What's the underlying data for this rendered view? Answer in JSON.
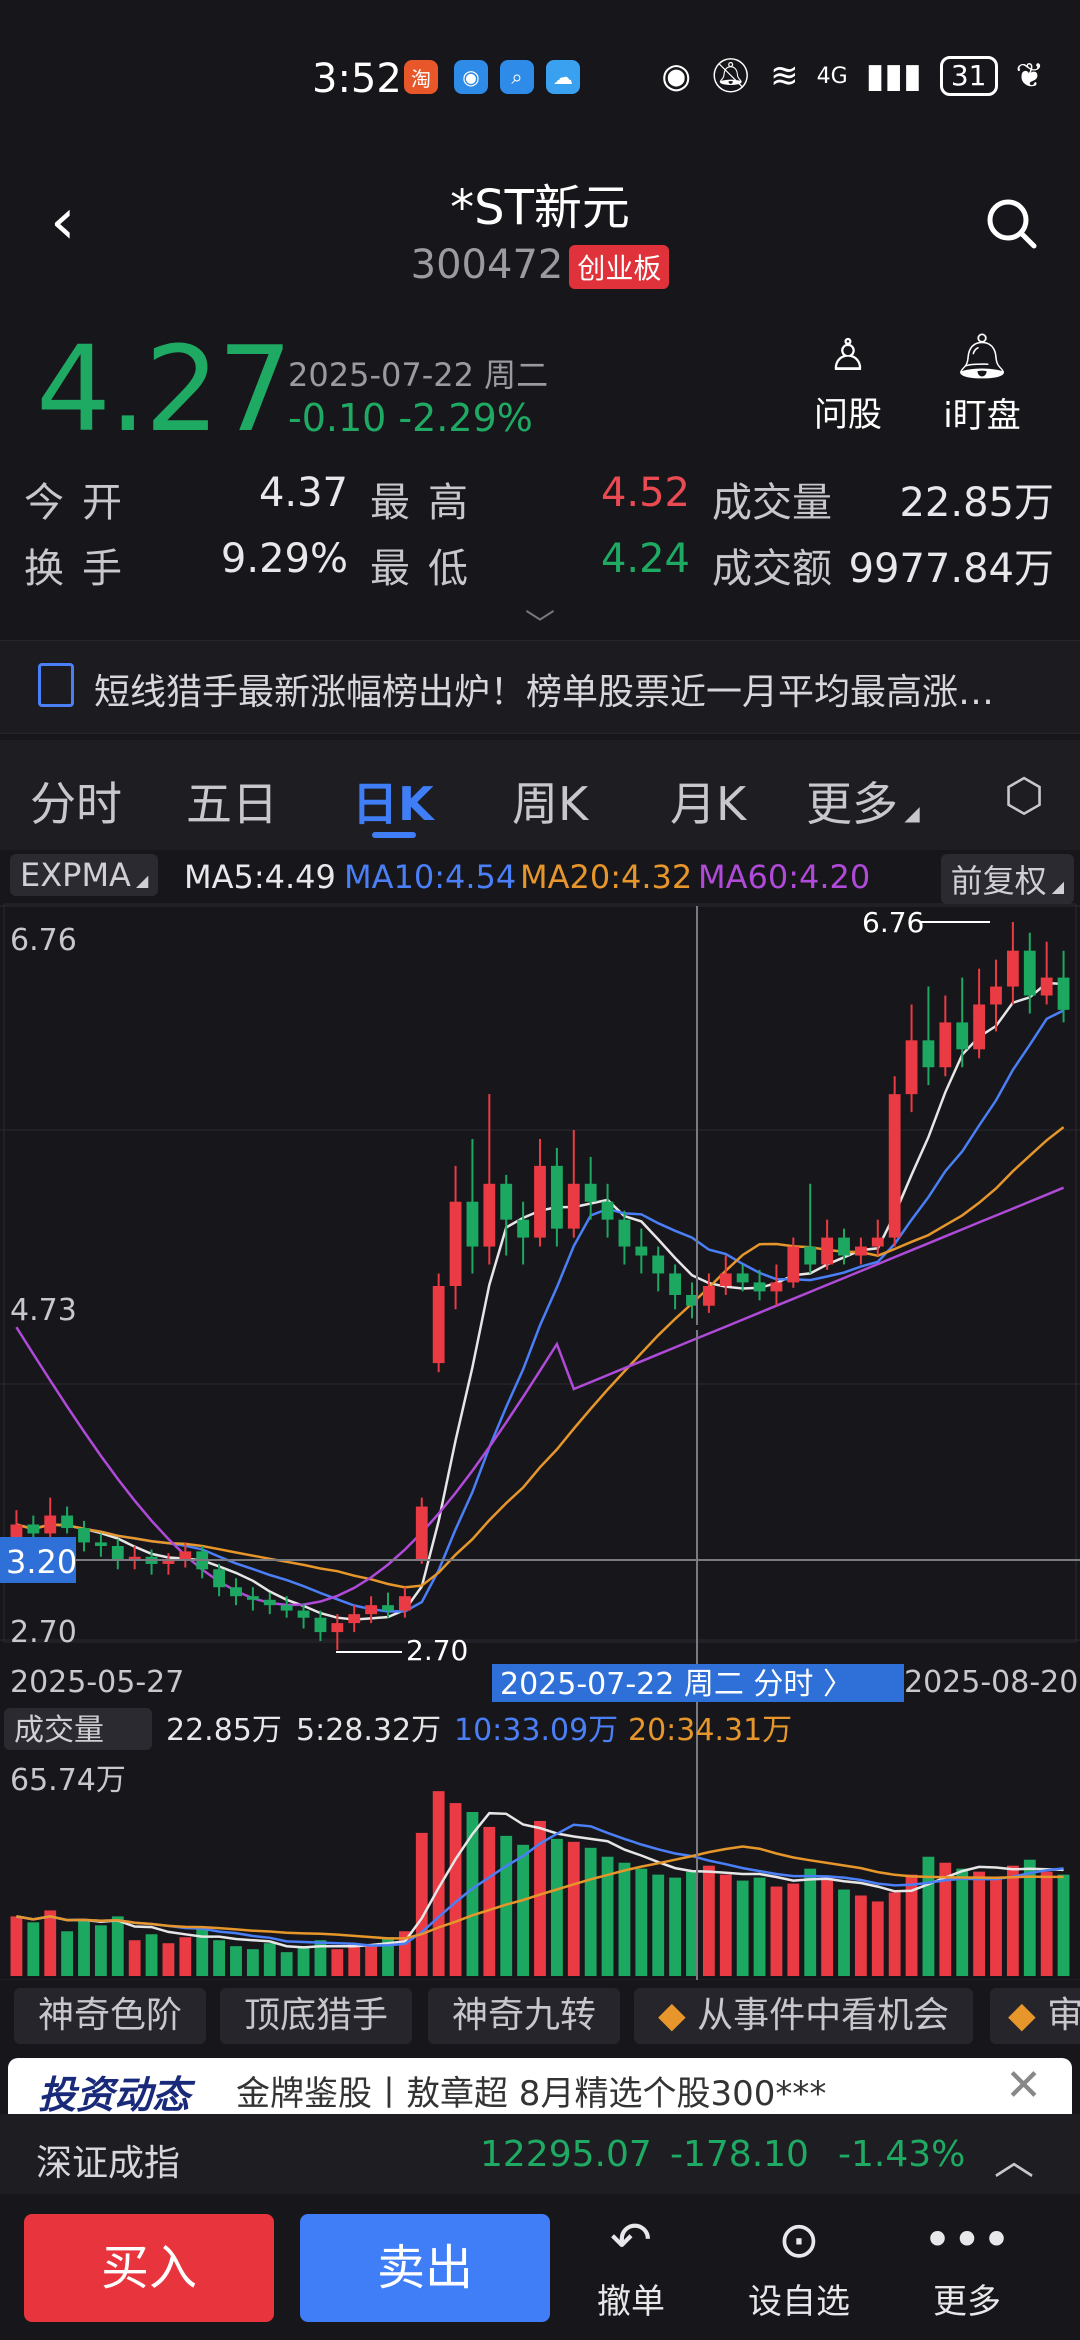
{
  "status": {
    "time": "3:52",
    "net": "4G",
    "battery": "31"
  },
  "header": {
    "title": "*ST新元",
    "code": "300472",
    "board": "创业板"
  },
  "quote": {
    "price": "4.27",
    "date": "2025-07-22 周二",
    "change": "-0.10",
    "change_pct": "-2.29%",
    "stats": [
      {
        "label": "今开",
        "value": "4.37"
      },
      {
        "label": "最高",
        "value": "4.52"
      },
      {
        "label": "成交量",
        "value": "22.85万"
      },
      {
        "label": "换手",
        "value": "9.29%"
      },
      {
        "label": "最低",
        "value": "4.24"
      },
      {
        "label": "成交额",
        "value": "9977.84万"
      }
    ]
  },
  "quick_actions": [
    {
      "label": "问股"
    },
    {
      "label": "i盯盘"
    }
  ],
  "news": {
    "text": "短线猎手最新涨幅榜出炉！榜单股票近一月平均最高涨…"
  },
  "tabs": [
    "分时",
    "五日",
    "日K",
    "周K",
    "月K",
    "更多"
  ],
  "indicators": {
    "type": "EXPMA",
    "adjust": "前复权",
    "ma": [
      {
        "label": "MA5:4.49",
        "color": "#e6e6e6"
      },
      {
        "label": "MA10:4.54",
        "color": "#4a7ff7"
      },
      {
        "label": "MA20:4.32",
        "color": "#e6962a"
      },
      {
        "label": "MA60:4.20",
        "color": "#b04ad8"
      }
    ]
  },
  "kline": {
    "axis_max": "6.76",
    "axis_mid": "4.73",
    "axis_min": "2.70",
    "crosshair_price": "3.20",
    "high_marker": "6.76",
    "low_marker": "2.70",
    "start_date": "2025-05-27",
    "end_date": "2025-08-20",
    "crosshair_label": "2025-07-22 周二 分时 〉"
  },
  "volume": {
    "type": "成交量",
    "value": "22.85万",
    "ma": [
      {
        "label": "5:28.32万",
        "color": "#e6e6e6"
      },
      {
        "label": "10:33.09万",
        "color": "#4a7ff7"
      },
      {
        "label": "20:34.31万",
        "color": "#e6962a"
      }
    ],
    "axis_max": "65.74万"
  },
  "feature_chips": [
    "神奇色阶",
    "顶底猎手",
    "神奇九转",
    "从事件中看机会",
    "审"
  ],
  "ad": {
    "logo": "投资动态",
    "text": "金牌鉴股丨敖章超 8月精选个股300***"
  },
  "index": {
    "name": "深证成指",
    "value": "12295.07",
    "change": "-178.10",
    "pct": "-1.43%"
  },
  "bottom": {
    "buy": "买入",
    "sell": "卖出",
    "actions": [
      "撤单",
      "设自选",
      "更多"
    ]
  },
  "chart_data": {
    "type": "candlestick",
    "y_range": [
      2.7,
      6.76
    ],
    "candles": [
      [
        3.3,
        3.4,
        3.48,
        3.25
      ],
      [
        3.4,
        3.35,
        3.45,
        3.3
      ],
      [
        3.35,
        3.45,
        3.55,
        3.32
      ],
      [
        3.45,
        3.38,
        3.5,
        3.35
      ],
      [
        3.38,
        3.3,
        3.42,
        3.25
      ],
      [
        3.3,
        3.28,
        3.35,
        3.22
      ],
      [
        3.28,
        3.2,
        3.32,
        3.15
      ],
      [
        3.2,
        3.22,
        3.28,
        3.15
      ],
      [
        3.22,
        3.18,
        3.26,
        3.12
      ],
      [
        3.18,
        3.2,
        3.24,
        3.12
      ],
      [
        3.2,
        3.25,
        3.3,
        3.16
      ],
      [
        3.25,
        3.15,
        3.28,
        3.1
      ],
      [
        3.15,
        3.05,
        3.18,
        3.0
      ],
      [
        3.05,
        3.0,
        3.1,
        2.95
      ],
      [
        3.0,
        2.98,
        3.05,
        2.92
      ],
      [
        2.98,
        2.95,
        3.02,
        2.9
      ],
      [
        2.95,
        2.92,
        3.0,
        2.88
      ],
      [
        2.92,
        2.88,
        2.96,
        2.82
      ],
      [
        2.88,
        2.8,
        2.92,
        2.75
      ],
      [
        2.8,
        2.85,
        2.9,
        2.7
      ],
      [
        2.85,
        2.9,
        2.95,
        2.8
      ],
      [
        2.9,
        2.95,
        3.0,
        2.85
      ],
      [
        2.95,
        2.92,
        3.02,
        2.88
      ],
      [
        2.92,
        3.0,
        3.05,
        2.88
      ],
      [
        3.2,
        3.5,
        3.55,
        3.18
      ],
      [
        4.3,
        4.73,
        4.8,
        4.25
      ],
      [
        4.73,
        5.2,
        5.4,
        4.6
      ],
      [
        5.2,
        4.95,
        5.55,
        4.8
      ],
      [
        4.95,
        5.3,
        5.8,
        4.85
      ],
      [
        5.3,
        5.1,
        5.35,
        4.9
      ],
      [
        5.1,
        5.0,
        5.2,
        4.85
      ],
      [
        5.0,
        5.4,
        5.55,
        4.95
      ],
      [
        5.4,
        5.05,
        5.5,
        4.95
      ],
      [
        5.05,
        5.3,
        5.6,
        5.0
      ],
      [
        5.3,
        5.2,
        5.45,
        5.1
      ],
      [
        5.2,
        5.1,
        5.3,
        5.0
      ],
      [
        5.1,
        4.95,
        5.15,
        4.85
      ],
      [
        4.95,
        4.9,
        5.05,
        4.8
      ],
      [
        4.9,
        4.8,
        4.95,
        4.7
      ],
      [
        4.8,
        4.68,
        4.85,
        4.6
      ],
      [
        4.68,
        4.62,
        4.75,
        4.55
      ],
      [
        4.62,
        4.73,
        4.8,
        4.58
      ],
      [
        4.73,
        4.8,
        4.9,
        4.68
      ],
      [
        4.8,
        4.75,
        4.85,
        4.7
      ],
      [
        4.75,
        4.7,
        4.82,
        4.65
      ],
      [
        4.7,
        4.75,
        4.85,
        4.62
      ],
      [
        4.75,
        4.95,
        5.0,
        4.72
      ],
      [
        4.95,
        4.85,
        5.3,
        4.8
      ],
      [
        4.85,
        5.0,
        5.1,
        4.82
      ],
      [
        5.0,
        4.9,
        5.05,
        4.85
      ],
      [
        4.9,
        4.95,
        5.0,
        4.85
      ],
      [
        4.95,
        5.0,
        5.1,
        4.9
      ],
      [
        5.0,
        5.8,
        5.9,
        4.95
      ],
      [
        5.8,
        6.1,
        6.3,
        5.7
      ],
      [
        6.1,
        5.95,
        6.4,
        5.85
      ],
      [
        5.95,
        6.2,
        6.35,
        5.9
      ],
      [
        6.2,
        6.05,
        6.45,
        5.95
      ],
      [
        6.05,
        6.3,
        6.5,
        6.0
      ],
      [
        6.3,
        6.4,
        6.55,
        6.15
      ],
      [
        6.4,
        6.6,
        6.76,
        6.3
      ],
      [
        6.6,
        6.35,
        6.7,
        6.25
      ],
      [
        6.35,
        6.45,
        6.65,
        6.3
      ],
      [
        6.45,
        6.27,
        6.6,
        6.2
      ]
    ],
    "volume": [
      20,
      18,
      22,
      15,
      19,
      17,
      20,
      12,
      14,
      11,
      13,
      16,
      12,
      10,
      9,
      11,
      8,
      10,
      12,
      9,
      11,
      10,
      13,
      15,
      48,
      62,
      58,
      55,
      50,
      47,
      44,
      52,
      46,
      45,
      43,
      40,
      38,
      36,
      34,
      33,
      35,
      37,
      34,
      32,
      33,
      30,
      31,
      36,
      33,
      29,
      27,
      25,
      28,
      34,
      40,
      38,
      36,
      35,
      33,
      37,
      39,
      35,
      34
    ]
  }
}
